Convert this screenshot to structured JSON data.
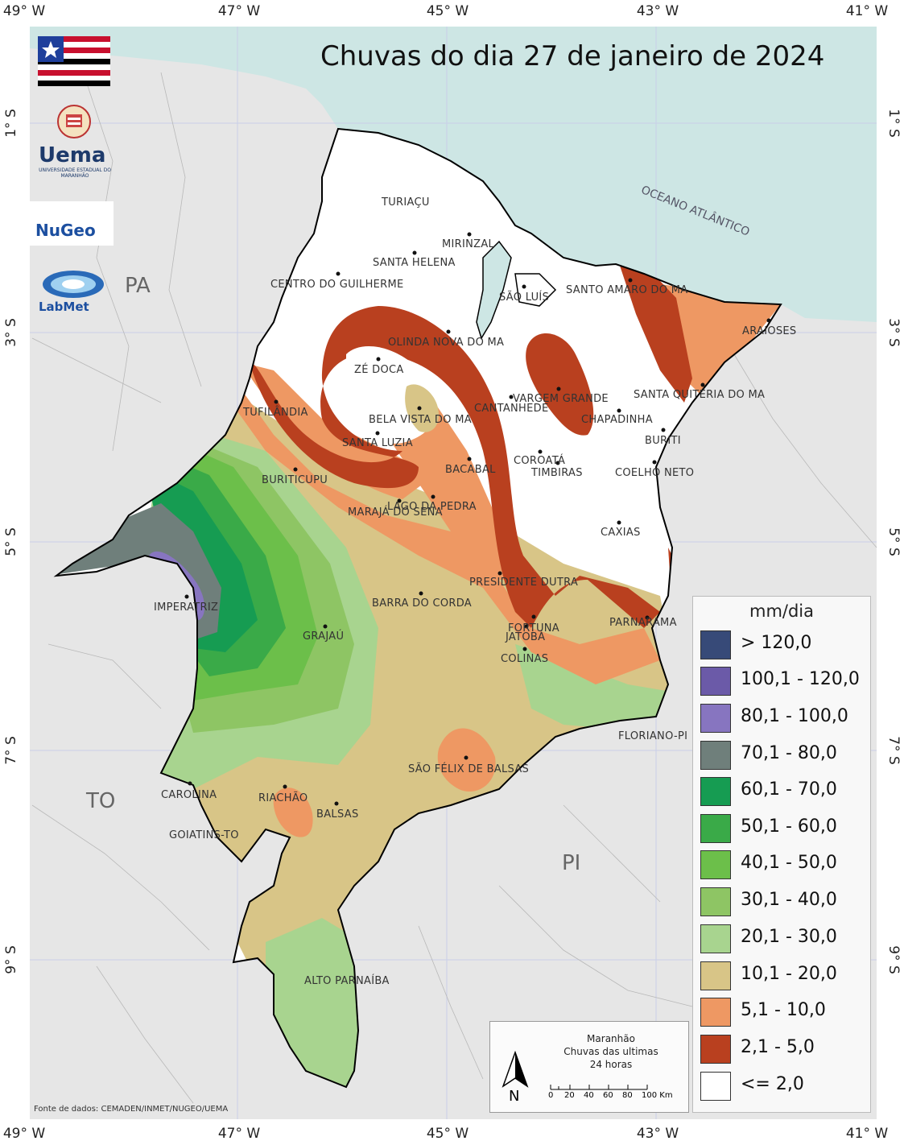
{
  "title": "Chuvas do dia 27 de janeiro de 2024",
  "longitude_labels": [
    "49° W",
    "47° W",
    "45° W",
    "43° W",
    "41° W"
  ],
  "latitude_labels": [
    "1° S",
    "3° S",
    "5° S",
    "7° S",
    "9° S"
  ],
  "states": {
    "pa": "PA",
    "to": "TO",
    "pi": "PI"
  },
  "ocean_label": "OCEANO ATLÂNTICO",
  "cities": [
    "TURIAÇU",
    "MIRINZAL",
    "SANTA HELENA",
    "CENTRO DO GUILHERME",
    "SÃO LUÍS",
    "SANTO AMARO DO MA",
    "ARAIOSES",
    "OLINDA NOVA DO MA",
    "ZÉ DOCA",
    "VARGEM GRANDE",
    "SANTA QUITÉRIA DO MA",
    "TUFILÂNDIA",
    "BELA VISTA DO MA",
    "CANTANHEDE",
    "CHAPADINHA",
    "SANTA LUZIA",
    "BURITI",
    "COROATÁ",
    "BACABAL",
    "TIMBIRAS",
    "COELHO NETO",
    "BURITICUPU",
    "LAGO DA PEDRA",
    "MARAJÁ DO SENA",
    "CAXIAS",
    "PRESIDENTE DUTRA",
    "BARRA DO CORDA",
    "IMPERATRIZ",
    "GRAJAÚ",
    "FORTUNA",
    "JATOBÁ",
    "PARNARAMA",
    "COLINAS",
    "FLORIANO-PI",
    "SÃO FÉLIX DE BALSAS",
    "CAROLINA",
    "RIACHÃO",
    "BALSAS",
    "GOIATINS-TO",
    "ALTO PARNAÍBA"
  ],
  "legend": {
    "title": "mm/dia",
    "classes": [
      {
        "label": "> 120,0",
        "color": "#374a78"
      },
      {
        "label": "100,1 - 120,0",
        "color": "#6b5aa8"
      },
      {
        "label": "80,1 - 100,0",
        "color": "#8775c0"
      },
      {
        "label": "70,1 - 80,0",
        "color": "#6f7f7b"
      },
      {
        "label": "60,1 - 70,0",
        "color": "#169c52"
      },
      {
        "label": "50,1 - 60,0",
        "color": "#3aaa48"
      },
      {
        "label": "40,1 - 50,0",
        "color": "#6cbf4a"
      },
      {
        "label": "30,1 - 40,0",
        "color": "#8ec564"
      },
      {
        "label": "20,1 - 30,0",
        "color": "#a8d48f"
      },
      {
        "label": "10,1 - 20,0",
        "color": "#d8c587"
      },
      {
        "label": "5,1 - 10,0",
        "color": "#ee9863"
      },
      {
        "label": "2,1 - 5,0",
        "color": "#b9401f"
      },
      {
        "label": "<= 2,0",
        "color": "#ffffff"
      }
    ]
  },
  "info_box": {
    "line1": "Maranhão",
    "line2": "Chuvas das ultimas",
    "line3": "24 horas",
    "north": "N",
    "scale_ticks": [
      "0",
      "20",
      "40",
      "60",
      "80",
      "100 Km"
    ]
  },
  "source": "Fonte de dados: CEMADEN/INMET/NUGEO/UEMA",
  "logos": {
    "uema": "Uema",
    "uema_sub": "UNIVERSIDADE ESTADUAL DO MARANHÃO",
    "nugeo": "NuGeo",
    "labmet": "LabMet"
  },
  "colors": {
    "ocean": "#cde6e4",
    "land": "#e6e6e6",
    "border": "#000000"
  }
}
